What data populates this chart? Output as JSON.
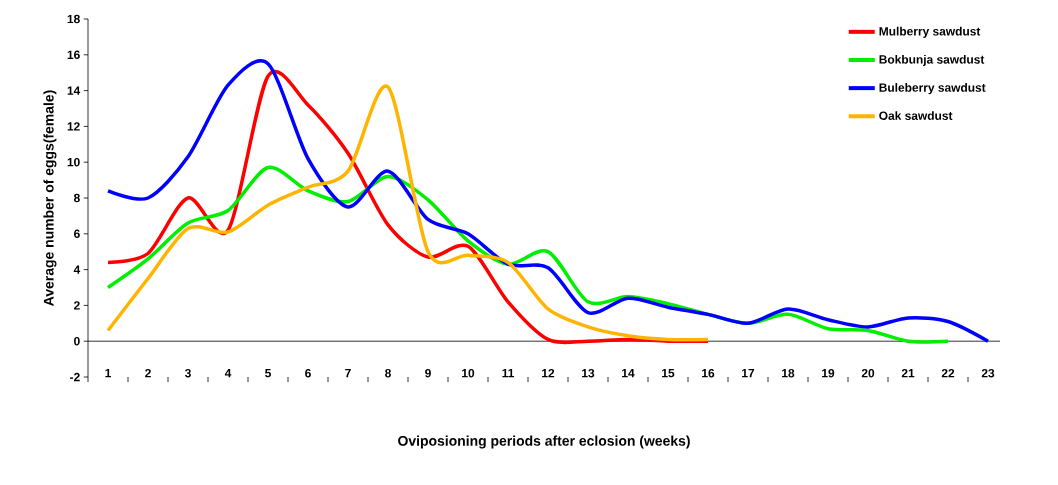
{
  "chart_data": {
    "type": "line",
    "xlabel": "Oviposioning periods after eclosion (weeks)",
    "ylabel": "Average number of eggs(female)",
    "categories": [
      "1",
      "2",
      "3",
      "4",
      "5",
      "6",
      "7",
      "8",
      "9",
      "10",
      "11",
      "12",
      "13",
      "14",
      "15",
      "16",
      "17",
      "18",
      "19",
      "20",
      "21",
      "22",
      "23"
    ],
    "ylim": [
      -2,
      18
    ],
    "yticks": [
      -2,
      0,
      2,
      4,
      6,
      8,
      10,
      12,
      14,
      16,
      18
    ],
    "legend": "top right",
    "marker": "none",
    "line_style": "solid",
    "series": [
      {
        "name": "Mulberry sawdust",
        "color": "#ff0000",
        "values": [
          4.4,
          4.9,
          8.0,
          6.2,
          14.8,
          13.2,
          10.5,
          6.5,
          4.7,
          5.3,
          2.2,
          0.1,
          0,
          0.1,
          0,
          0,
          null,
          null,
          null,
          null,
          null,
          null,
          null
        ]
      },
      {
        "name": "Bokbunja sawdust",
        "color": "#00ee00",
        "values": [
          3.0,
          4.6,
          6.6,
          7.3,
          9.7,
          8.4,
          7.8,
          9.2,
          7.9,
          5.6,
          4.3,
          5.0,
          2.2,
          2.5,
          2.1,
          1.5,
          1.0,
          1.5,
          0.7,
          0.6,
          0,
          0,
          null
        ]
      },
      {
        "name": "Buleberry sawdust",
        "color": "#0000ff",
        "values": [
          8.4,
          8.0,
          10.3,
          14.3,
          15.5,
          10.2,
          7.5,
          9.5,
          6.8,
          6.0,
          4.3,
          4.1,
          1.6,
          2.4,
          1.9,
          1.5,
          1.0,
          1.8,
          1.2,
          0.8,
          1.3,
          1.1,
          0
        ]
      },
      {
        "name": "Oak sawdust",
        "color": "#ffb400",
        "values": [
          0.6,
          3.5,
          6.3,
          6.1,
          7.6,
          8.6,
          9.5,
          14.2,
          5.0,
          4.8,
          4.4,
          1.8,
          0.8,
          0.3,
          0.1,
          0.1,
          null,
          null,
          null,
          null,
          null,
          null,
          null
        ]
      }
    ]
  }
}
